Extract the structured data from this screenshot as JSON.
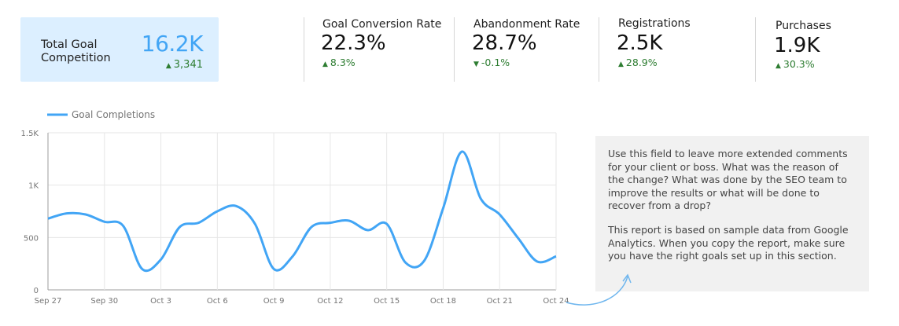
{
  "kpis": {
    "main": {
      "label": "Total Goal Competition",
      "value": "16.2K",
      "delta": "3,341",
      "delta_dir": "up"
    },
    "cards": [
      {
        "label": "Goal Conversion Rate",
        "value": "22.3%",
        "delta": "8.3%",
        "delta_dir": "up"
      },
      {
        "label": "Abandonment Rate",
        "value": "28.7%",
        "delta": "-0.1%",
        "delta_dir": "down"
      },
      {
        "label": "Registrations",
        "value": "2.5K",
        "delta": "28.9%",
        "delta_dir": "up"
      },
      {
        "label": "Purchases",
        "value": "1.9K",
        "delta": "30.3%",
        "delta_dir": "up"
      }
    ]
  },
  "colors": {
    "accent": "#42a5f5",
    "positive": "#2e7d32",
    "main_card_bg": "#dcefff",
    "comment_bg": "#f1f1f1"
  },
  "icons": {
    "up": "arrow-up-icon",
    "down": "arrow-down-icon"
  },
  "comment": {
    "paragraph1": "Use this field to leave more extended comments for your client or boss. What was the reason of the change? What was done by the SEO team to improve the results or what will be done to recover from a drop?",
    "paragraph2": "This report is based on sample data from Google Analytics. When you copy the report, make sure you have the right goals set up in this section."
  },
  "chart_data": {
    "type": "line",
    "title": "",
    "xlabel": "",
    "ylabel": "",
    "ylim": [
      0,
      1500
    ],
    "yticks": [
      0,
      500,
      1000,
      1500
    ],
    "ytick_labels": [
      "0",
      "500",
      "1K",
      "1.5K"
    ],
    "x": [
      "Sep 27",
      "Sep 28",
      "Sep 29",
      "Sep 30",
      "Oct 1",
      "Oct 2",
      "Oct 3",
      "Oct 4",
      "Oct 5",
      "Oct 6",
      "Oct 7",
      "Oct 8",
      "Oct 9",
      "Oct 10",
      "Oct 11",
      "Oct 12",
      "Oct 13",
      "Oct 14",
      "Oct 15",
      "Oct 16",
      "Oct 17",
      "Oct 18",
      "Oct 19",
      "Oct 20",
      "Oct 21",
      "Oct 22",
      "Oct 23",
      "Oct 24"
    ],
    "xtick_labels": [
      "Sep 27",
      "Sep 30",
      "Oct 3",
      "Oct 6",
      "Oct 9",
      "Oct 12",
      "Oct 15",
      "Oct 18",
      "Oct 21",
      "Oct 24"
    ],
    "grid": true,
    "legend_position": "top-left",
    "series": [
      {
        "name": "Goal Completions",
        "color": "#42a5f5",
        "values": [
          680,
          730,
          720,
          650,
          610,
          200,
          290,
          600,
          640,
          750,
          800,
          630,
          200,
          320,
          600,
          640,
          660,
          570,
          630,
          260,
          280,
          780,
          1320,
          870,
          720,
          490,
          270,
          320
        ]
      }
    ]
  }
}
